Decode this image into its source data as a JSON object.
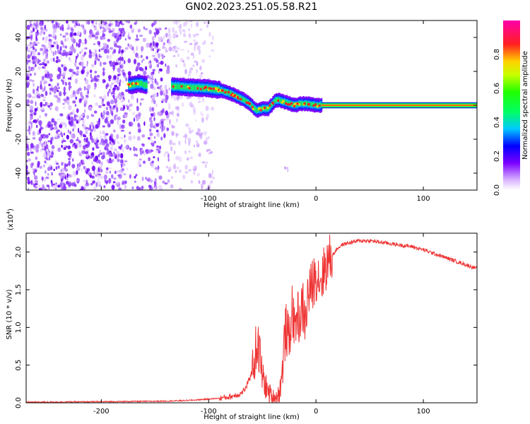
{
  "title": "GN02.2023.251.05.58.R21",
  "chart_data": [
    {
      "type": "heatmap",
      "title": "GN02.2023.251.05.58.R21",
      "xlabel": "Height of straight line (km)",
      "ylabel": "Frequency (Hz)",
      "xlim": [
        -270,
        150
      ],
      "ylim": [
        -50,
        50
      ],
      "x_ticks": [
        -200,
        -100,
        0,
        100
      ],
      "y_ticks": [
        -40,
        -20,
        0,
        20,
        40
      ],
      "colorbar": {
        "label": "Normalized spectral amplitude",
        "range": [
          0,
          1
        ],
        "ticks": [
          0.0,
          0.2,
          0.4,
          0.6,
          0.8
        ]
      },
      "signal_trace": {
        "x": [
          -172,
          -165,
          -160,
          -130,
          -115,
          -100,
          -90,
          -80,
          -70,
          -62,
          -56,
          -50,
          -45,
          -42,
          -38,
          -35,
          -30,
          -25,
          -20,
          -15,
          -10,
          -5,
          0,
          150
        ],
        "frequency": [
          12,
          13,
          12,
          11,
          10.5,
          10,
          9,
          7,
          4,
          1,
          -3,
          -2,
          -2,
          0,
          3,
          3,
          2,
          1,
          0,
          1,
          1,
          0.5,
          0,
          0
        ]
      },
      "noise_region_x": [
        -270,
        -110
      ]
    },
    {
      "type": "line",
      "xlabel": "Height of straight line (km)",
      "ylabel": "SNR (10 * v/v)",
      "y_multiplier": "(x10^4)",
      "y_multiplier_base": "(x10",
      "y_multiplier_exp": "4",
      "y_multiplier_close": ")",
      "xlim": [
        -270,
        150
      ],
      "ylim": [
        0,
        2.25
      ],
      "x_ticks": [
        -200,
        -100,
        0,
        100
      ],
      "y_ticks": [
        0.0,
        0.5,
        1.0,
        1.5,
        2.0
      ],
      "series": [
        {
          "color": "#ee3333",
          "x": [
            -270,
            -250,
            -200,
            -150,
            -120,
            -100,
            -90,
            -80,
            -75,
            -70,
            -65,
            -60,
            -57,
            -55,
            -52,
            -50,
            -45,
            -40,
            -35,
            -32,
            -30,
            -28,
            -25,
            -22,
            -20,
            -18,
            -15,
            -12,
            -10,
            -8,
            -5,
            0,
            5,
            10,
            15,
            20,
            25,
            30,
            40,
            50,
            60,
            70,
            80,
            90,
            100,
            110,
            120,
            130,
            140,
            150
          ],
          "y": [
            0.01,
            0.01,
            0.015,
            0.02,
            0.03,
            0.05,
            0.06,
            0.08,
            0.1,
            0.12,
            0.2,
            0.4,
            0.6,
            0.8,
            0.6,
            0.35,
            0.15,
            0.06,
            0.1,
            0.3,
            0.7,
            1.0,
            0.8,
            1.3,
            0.9,
            1.2,
            1.1,
            1.3,
            1.0,
            1.4,
            1.5,
            1.7,
            1.65,
            1.85,
            1.95,
            2.05,
            2.1,
            2.12,
            2.15,
            2.15,
            2.13,
            2.11,
            2.09,
            2.07,
            2.03,
            1.98,
            1.93,
            1.88,
            1.83,
            1.78
          ]
        }
      ]
    }
  ]
}
